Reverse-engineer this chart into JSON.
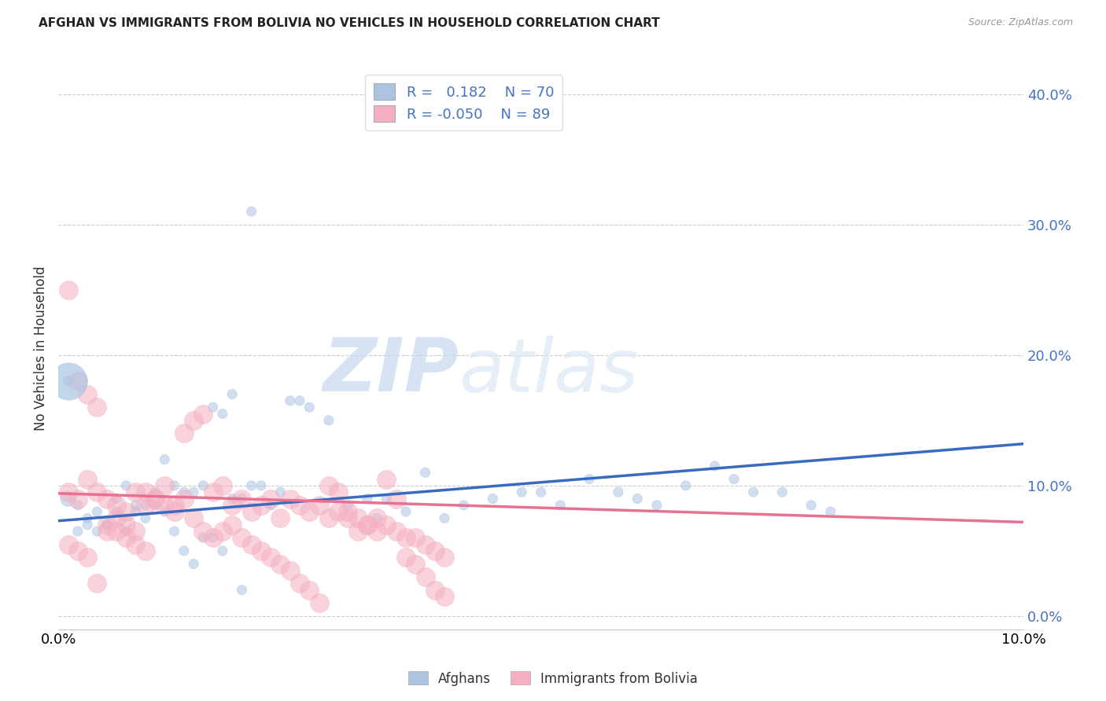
{
  "title": "AFGHAN VS IMMIGRANTS FROM BOLIVIA NO VEHICLES IN HOUSEHOLD CORRELATION CHART",
  "source": "Source: ZipAtlas.com",
  "ylabel": "No Vehicles in Household",
  "xlim": [
    0.0,
    0.1
  ],
  "ylim": [
    -0.01,
    0.42
  ],
  "afghan_color": "#aac4e2",
  "bolivia_color": "#f5afc0",
  "afghan_line_color": "#3a6abf",
  "bolivia_line_color": "#e87090",
  "watermark_zip": "ZIP",
  "watermark_atlas": "atlas",
  "legend_label_afghan": "Afghans",
  "legend_label_bolivia": "Immigrants from Bolivia",
  "legend_r_afghan": "R =   0.182",
  "legend_n_afghan": "N = 70",
  "legend_r_bolivia": "R = -0.050",
  "legend_n_bolivia": "N = 89",
  "afghan_trendline": {
    "x": [
      0.0,
      0.1
    ],
    "y": [
      0.073,
      0.132
    ]
  },
  "bolivia_trendline": {
    "x": [
      0.0,
      0.1
    ],
    "y": [
      0.094,
      0.072
    ]
  },
  "afghan_x": [
    0.001,
    0.002,
    0.003,
    0.004,
    0.005,
    0.006,
    0.007,
    0.008,
    0.009,
    0.01,
    0.011,
    0.012,
    0.013,
    0.014,
    0.015,
    0.016,
    0.017,
    0.018,
    0.019,
    0.02,
    0.021,
    0.022,
    0.023,
    0.024,
    0.025,
    0.026,
    0.028,
    0.03,
    0.032,
    0.033,
    0.034,
    0.036,
    0.038,
    0.04,
    0.042,
    0.045,
    0.048,
    0.05,
    0.052,
    0.055,
    0.058,
    0.06,
    0.062,
    0.065,
    0.068,
    0.07,
    0.072,
    0.075,
    0.078,
    0.08,
    0.001,
    0.002,
    0.003,
    0.004,
    0.005,
    0.006,
    0.007,
    0.008,
    0.009,
    0.01,
    0.011,
    0.012,
    0.013,
    0.014,
    0.015,
    0.016,
    0.017,
    0.018,
    0.019,
    0.02
  ],
  "afghan_y": [
    0.09,
    0.085,
    0.075,
    0.08,
    0.07,
    0.09,
    0.1,
    0.085,
    0.075,
    0.095,
    0.12,
    0.1,
    0.095,
    0.095,
    0.1,
    0.16,
    0.155,
    0.17,
    0.09,
    0.1,
    0.1,
    0.085,
    0.095,
    0.165,
    0.165,
    0.16,
    0.15,
    0.085,
    0.09,
    0.075,
    0.09,
    0.08,
    0.11,
    0.075,
    0.085,
    0.09,
    0.095,
    0.095,
    0.085,
    0.105,
    0.095,
    0.09,
    0.085,
    0.1,
    0.115,
    0.105,
    0.095,
    0.095,
    0.085,
    0.08,
    0.18,
    0.065,
    0.07,
    0.065,
    0.07,
    0.08,
    0.065,
    0.08,
    0.085,
    0.085,
    0.08,
    0.065,
    0.05,
    0.04,
    0.06,
    0.06,
    0.05,
    0.09,
    0.02,
    0.31
  ],
  "afghan_size": [
    200,
    80,
    80,
    80,
    80,
    80,
    80,
    80,
    80,
    80,
    80,
    80,
    80,
    80,
    80,
    80,
    80,
    80,
    80,
    80,
    80,
    80,
    80,
    80,
    80,
    80,
    80,
    80,
    80,
    80,
    80,
    80,
    80,
    80,
    80,
    80,
    80,
    80,
    80,
    80,
    80,
    80,
    80,
    80,
    80,
    80,
    80,
    80,
    80,
    80,
    80,
    80,
    80,
    80,
    80,
    80,
    80,
    80,
    80,
    80,
    80,
    80,
    80,
    80,
    80,
    80,
    80,
    80,
    80,
    80
  ],
  "bolivia_x": [
    0.001,
    0.002,
    0.003,
    0.004,
    0.005,
    0.006,
    0.007,
    0.008,
    0.009,
    0.01,
    0.011,
    0.012,
    0.013,
    0.014,
    0.015,
    0.016,
    0.017,
    0.018,
    0.019,
    0.02,
    0.021,
    0.022,
    0.023,
    0.024,
    0.025,
    0.026,
    0.027,
    0.028,
    0.029,
    0.03,
    0.031,
    0.032,
    0.033,
    0.034,
    0.035,
    0.036,
    0.037,
    0.038,
    0.039,
    0.04,
    0.001,
    0.002,
    0.003,
    0.004,
    0.005,
    0.006,
    0.007,
    0.008,
    0.009,
    0.01,
    0.011,
    0.012,
    0.013,
    0.014,
    0.015,
    0.016,
    0.017,
    0.018,
    0.019,
    0.02,
    0.021,
    0.022,
    0.023,
    0.024,
    0.025,
    0.026,
    0.027,
    0.028,
    0.029,
    0.03,
    0.031,
    0.032,
    0.033,
    0.034,
    0.035,
    0.036,
    0.037,
    0.038,
    0.039,
    0.04,
    0.001,
    0.002,
    0.003,
    0.004,
    0.005,
    0.006,
    0.007,
    0.008,
    0.009
  ],
  "bolivia_y": [
    0.095,
    0.09,
    0.105,
    0.095,
    0.09,
    0.085,
    0.08,
    0.095,
    0.085,
    0.09,
    0.1,
    0.085,
    0.14,
    0.15,
    0.155,
    0.095,
    0.1,
    0.085,
    0.09,
    0.08,
    0.085,
    0.09,
    0.075,
    0.09,
    0.085,
    0.08,
    0.085,
    0.075,
    0.08,
    0.075,
    0.065,
    0.07,
    0.075,
    0.07,
    0.065,
    0.06,
    0.06,
    0.055,
    0.05,
    0.045,
    0.25,
    0.18,
    0.17,
    0.16,
    0.065,
    0.075,
    0.07,
    0.065,
    0.095,
    0.09,
    0.085,
    0.08,
    0.09,
    0.075,
    0.065,
    0.06,
    0.065,
    0.07,
    0.06,
    0.055,
    0.05,
    0.045,
    0.04,
    0.035,
    0.025,
    0.02,
    0.01,
    0.1,
    0.095,
    0.08,
    0.075,
    0.07,
    0.065,
    0.105,
    0.09,
    0.045,
    0.04,
    0.03,
    0.02,
    0.015,
    0.055,
    0.05,
    0.045,
    0.025,
    0.07,
    0.065,
    0.06,
    0.055,
    0.05
  ]
}
